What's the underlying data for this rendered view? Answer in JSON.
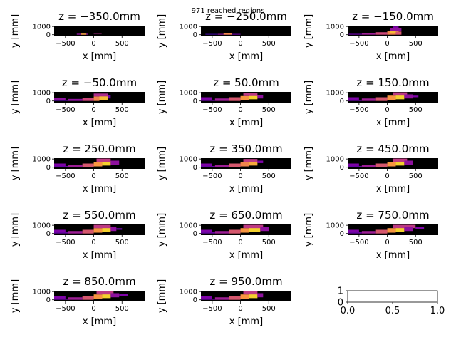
{
  "figure": {
    "suptitle": "971 reached regions"
  },
  "chart_data": {
    "type": "heatmap",
    "colormap": "plasma",
    "background": "#000000",
    "xlabel": "$x$ [mm]",
    "ylabel": "$y$ [mm]",
    "xlabel_text": "x [mm]",
    "ylabel_text": "y [mm]",
    "xlim": [
      -700,
      900
    ],
    "ylim": [
      -200,
      1100
    ],
    "xticks": [
      -500,
      0,
      500
    ],
    "yticks": [
      0,
      1000
    ],
    "panels": [
      {
        "title": "z = −350.0mm",
        "cells": [
          [
            -300,
            0,
            -100,
            120,
            0.3
          ],
          [
            -230,
            0,
            -130,
            130,
            0.8
          ],
          [
            0,
            380,
            140,
            100,
            0.4
          ]
        ]
      },
      {
        "title": "z = −250.0mm",
        "cells": [
          [
            -620,
            0,
            -400,
            100,
            0.1
          ],
          [
            -400,
            0,
            -150,
            100,
            0.3
          ],
          [
            -300,
            0,
            -150,
            180,
            0.7
          ],
          [
            -150,
            0,
            0,
            100,
            0.2
          ]
        ]
      },
      {
        "title": "z = −150.0mm",
        "cells": [
          [
            -680,
            0,
            -450,
            110,
            0.2
          ],
          [
            -450,
            0,
            -200,
            220,
            0.35
          ],
          [
            -200,
            0,
            0,
            300,
            0.5
          ],
          [
            0,
            0,
            150,
            450,
            0.7
          ],
          [
            50,
            200,
            200,
            420,
            0.85
          ],
          [
            150,
            0,
            250,
            380,
            0.55
          ],
          [
            50,
            420,
            250,
            780,
            0.3
          ],
          [
            100,
            780,
            200,
            1000,
            0.25
          ]
        ]
      },
      {
        "title": "z = −50.0mm",
        "cells": [
          [
            -700,
            0,
            -450,
            150,
            0.15
          ],
          [
            -450,
            0,
            -200,
            250,
            0.3
          ],
          [
            -200,
            0,
            0,
            400,
            0.5
          ],
          [
            0,
            0,
            100,
            550,
            0.7
          ],
          [
            100,
            100,
            250,
            700,
            0.85
          ],
          [
            0,
            550,
            250,
            900,
            0.4
          ],
          [
            250,
            300,
            300,
            700,
            0.2
          ],
          [
            -700,
            150,
            -500,
            400,
            0.3
          ]
        ]
      },
      {
        "title": "z = 50.0mm",
        "cells": [
          [
            -700,
            0,
            -450,
            150,
            0.2
          ],
          [
            -450,
            0,
            -200,
            300,
            0.35
          ],
          [
            -200,
            0,
            0,
            450,
            0.55
          ],
          [
            0,
            100,
            150,
            600,
            0.75
          ],
          [
            150,
            200,
            300,
            700,
            0.9
          ],
          [
            50,
            600,
            300,
            1000,
            0.45
          ],
          [
            300,
            300,
            400,
            750,
            0.3
          ],
          [
            -700,
            150,
            -500,
            450,
            0.25
          ]
        ]
      },
      {
        "title": "z = 150.0mm",
        "cells": [
          [
            -700,
            0,
            -450,
            150,
            0.2
          ],
          [
            -450,
            0,
            -200,
            300,
            0.35
          ],
          [
            -200,
            0,
            0,
            450,
            0.55
          ],
          [
            0,
            100,
            150,
            650,
            0.75
          ],
          [
            150,
            200,
            300,
            750,
            0.9
          ],
          [
            100,
            650,
            350,
            1050,
            0.45
          ],
          [
            300,
            300,
            450,
            800,
            0.3
          ],
          [
            450,
            450,
            550,
            650,
            0.25
          ],
          [
            -700,
            150,
            -500,
            450,
            0.25
          ]
        ]
      },
      {
        "title": "z = 250.0mm",
        "cells": [
          [
            -700,
            0,
            -450,
            150,
            0.2
          ],
          [
            -450,
            0,
            -200,
            300,
            0.35
          ],
          [
            -200,
            0,
            0,
            450,
            0.55
          ],
          [
            0,
            100,
            150,
            650,
            0.75
          ],
          [
            150,
            200,
            300,
            750,
            0.9
          ],
          [
            50,
            650,
            300,
            1050,
            0.45
          ],
          [
            300,
            300,
            450,
            800,
            0.3
          ],
          [
            -700,
            150,
            -500,
            450,
            0.25
          ]
        ]
      },
      {
        "title": "z = 350.0mm",
        "cells": [
          [
            -700,
            0,
            -450,
            150,
            0.2
          ],
          [
            -450,
            0,
            -200,
            300,
            0.35
          ],
          [
            -200,
            0,
            0,
            450,
            0.55
          ],
          [
            0,
            100,
            150,
            650,
            0.7
          ],
          [
            150,
            200,
            300,
            700,
            0.8
          ],
          [
            50,
            650,
            300,
            1000,
            0.45
          ],
          [
            300,
            500,
            400,
            800,
            0.25
          ],
          [
            -700,
            150,
            -500,
            450,
            0.25
          ]
        ]
      },
      {
        "title": "z = 450.0mm",
        "cells": [
          [
            -700,
            0,
            -450,
            150,
            0.2
          ],
          [
            -450,
            0,
            -200,
            300,
            0.35
          ],
          [
            -200,
            0,
            0,
            450,
            0.55
          ],
          [
            0,
            100,
            150,
            650,
            0.75
          ],
          [
            150,
            200,
            300,
            750,
            0.9
          ],
          [
            100,
            650,
            350,
            1050,
            0.45
          ],
          [
            300,
            300,
            450,
            800,
            0.3
          ],
          [
            -700,
            150,
            -500,
            450,
            0.25
          ]
        ]
      },
      {
        "title": "z = 550.0mm",
        "cells": [
          [
            -700,
            0,
            -450,
            150,
            0.2
          ],
          [
            -450,
            0,
            -200,
            300,
            0.35
          ],
          [
            -200,
            0,
            0,
            450,
            0.55
          ],
          [
            0,
            100,
            150,
            650,
            0.75
          ],
          [
            150,
            200,
            300,
            750,
            0.9
          ],
          [
            0,
            650,
            300,
            1050,
            0.45
          ],
          [
            300,
            300,
            400,
            800,
            0.3
          ],
          [
            400,
            450,
            500,
            650,
            0.2
          ],
          [
            -700,
            150,
            -500,
            450,
            0.25
          ]
        ]
      },
      {
        "title": "z = 650.0mm",
        "cells": [
          [
            -700,
            0,
            -450,
            150,
            0.2
          ],
          [
            -450,
            0,
            -200,
            300,
            0.35
          ],
          [
            -200,
            0,
            0,
            450,
            0.55
          ],
          [
            0,
            100,
            150,
            650,
            0.75
          ],
          [
            150,
            200,
            350,
            750,
            0.9
          ],
          [
            50,
            650,
            400,
            1050,
            0.45
          ],
          [
            350,
            300,
            500,
            800,
            0.3
          ],
          [
            -700,
            150,
            -500,
            450,
            0.25
          ]
        ]
      },
      {
        "title": "z = 750.0mm",
        "cells": [
          [
            -700,
            0,
            -450,
            150,
            0.2
          ],
          [
            -450,
            0,
            -200,
            300,
            0.35
          ],
          [
            -200,
            0,
            0,
            450,
            0.55
          ],
          [
            0,
            100,
            150,
            650,
            0.75
          ],
          [
            150,
            200,
            300,
            750,
            0.9
          ],
          [
            100,
            650,
            500,
            1050,
            0.45
          ],
          [
            300,
            300,
            450,
            800,
            0.3
          ],
          [
            500,
            550,
            650,
            800,
            0.25
          ],
          [
            -700,
            150,
            -500,
            450,
            0.25
          ]
        ]
      },
      {
        "title": "z = 850.0mm",
        "cells": [
          [
            -700,
            0,
            -450,
            150,
            0.2
          ],
          [
            -450,
            0,
            -200,
            300,
            0.35
          ],
          [
            -200,
            0,
            0,
            450,
            0.55
          ],
          [
            0,
            100,
            150,
            650,
            0.75
          ],
          [
            150,
            200,
            300,
            750,
            0.9
          ],
          [
            50,
            650,
            350,
            1050,
            0.45
          ],
          [
            300,
            300,
            450,
            800,
            0.3
          ],
          [
            450,
            450,
            600,
            700,
            0.25
          ],
          [
            -700,
            150,
            -500,
            450,
            0.25
          ]
        ]
      },
      {
        "title": "z = 950.0mm",
        "cells": [
          [
            -700,
            0,
            -450,
            150,
            0.2
          ],
          [
            -450,
            0,
            -200,
            300,
            0.35
          ],
          [
            -200,
            0,
            0,
            450,
            0.55
          ],
          [
            0,
            100,
            150,
            650,
            0.75
          ],
          [
            150,
            200,
            300,
            750,
            0.9
          ],
          [
            50,
            650,
            300,
            1050,
            0.45
          ],
          [
            300,
            300,
            400,
            800,
            0.3
          ],
          [
            -700,
            150,
            -500,
            450,
            0.25
          ]
        ]
      }
    ],
    "empty_panel": {
      "xlim": [
        0,
        1
      ],
      "ylim": [
        0,
        1
      ],
      "xticks": [
        "0.0",
        "0.5",
        "1.0"
      ],
      "yticks": [
        "0",
        "1"
      ]
    }
  }
}
